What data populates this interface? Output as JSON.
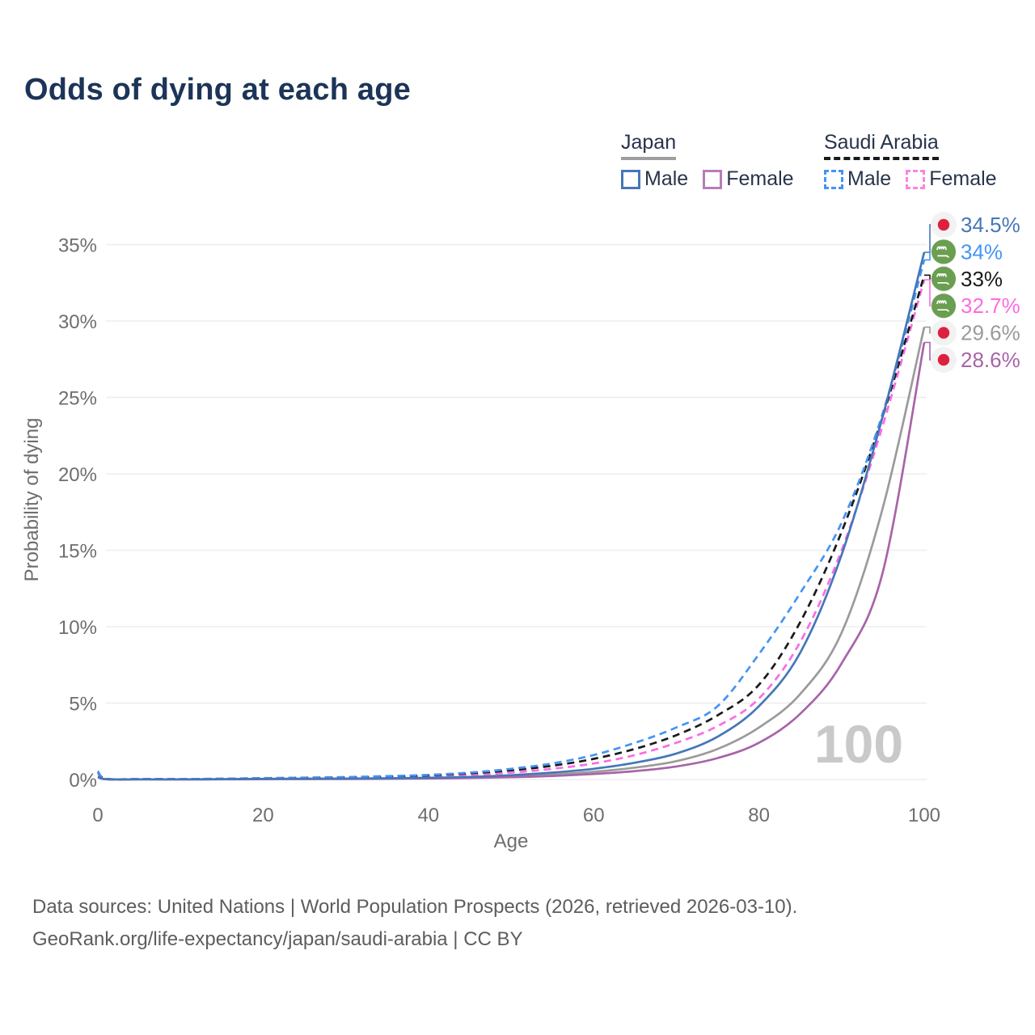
{
  "title": "Odds of dying at each age",
  "legend": {
    "japan": {
      "title": "Japan",
      "male_label": "Male",
      "female_label": "Female",
      "underline_color": "#9e9e9e",
      "underline_style": "solid",
      "male_color": "#4577b8",
      "female_color": "#b87cb8"
    },
    "saudi": {
      "title": "Saudi Arabia",
      "male_label": "Male",
      "female_label": "Female",
      "underline_color": "#1a1a1a",
      "underline_style": "dashed",
      "male_color": "#4494f6",
      "female_color": "#fb84e1"
    }
  },
  "chart_data": {
    "type": "line",
    "title": "Odds of dying at each age",
    "xlabel": "Age",
    "ylabel": "Probability of dying",
    "xlim": [
      0,
      100
    ],
    "ylim": [
      0,
      36.5
    ],
    "grid": "horizontal",
    "grid_color": "#ededed",
    "axis_text_color": "#6e6e6e",
    "xticks": [
      {
        "v": 0,
        "label": "0"
      },
      {
        "v": 20,
        "label": "20"
      },
      {
        "v": 40,
        "label": "40"
      },
      {
        "v": 60,
        "label": "60"
      },
      {
        "v": 80,
        "label": "80"
      },
      {
        "v": 100,
        "label": "100"
      }
    ],
    "yticks": [
      {
        "v": 0,
        "label": "0%"
      },
      {
        "v": 5,
        "label": "5%"
      },
      {
        "v": 10,
        "label": "10%"
      },
      {
        "v": 15,
        "label": "15%"
      },
      {
        "v": 20,
        "label": "20%"
      },
      {
        "v": 25,
        "label": "25%"
      },
      {
        "v": 30,
        "label": "30%"
      },
      {
        "v": 35,
        "label": "35%"
      }
    ],
    "hover_age_watermark": "100",
    "watermark_color": "#c9c9c9",
    "series": [
      {
        "name": "japan-total",
        "country": "Japan",
        "sex": "Total",
        "color": "#9b9b9b",
        "dash": false,
        "flag": "japan",
        "end_label": "29.6%",
        "end_value": 29.6,
        "label_row": 4,
        "points": [
          [
            0,
            0.16
          ],
          [
            1,
            0.018
          ],
          [
            5,
            0.009
          ],
          [
            10,
            0.008
          ],
          [
            15,
            0.015
          ],
          [
            20,
            0.03
          ],
          [
            25,
            0.04
          ],
          [
            30,
            0.05
          ],
          [
            35,
            0.06
          ],
          [
            40,
            0.085
          ],
          [
            45,
            0.13
          ],
          [
            50,
            0.2
          ],
          [
            55,
            0.32
          ],
          [
            60,
            0.5
          ],
          [
            65,
            0.78
          ],
          [
            70,
            1.2
          ],
          [
            75,
            2.0
          ],
          [
            80,
            3.4
          ],
          [
            85,
            5.6
          ],
          [
            90,
            9.6
          ],
          [
            95,
            17.8
          ],
          [
            100,
            29.6
          ]
        ]
      },
      {
        "name": "japan-female",
        "country": "Japan",
        "sex": "Female",
        "color": "#a864a8",
        "dash": false,
        "flag": "japan",
        "end_label": "28.6%",
        "end_value": 28.6,
        "label_row": 5,
        "points": [
          [
            0,
            0.15
          ],
          [
            1,
            0.016
          ],
          [
            5,
            0.008
          ],
          [
            10,
            0.007
          ],
          [
            15,
            0.01
          ],
          [
            20,
            0.02
          ],
          [
            25,
            0.027
          ],
          [
            30,
            0.033
          ],
          [
            35,
            0.045
          ],
          [
            40,
            0.065
          ],
          [
            45,
            0.1
          ],
          [
            50,
            0.15
          ],
          [
            55,
            0.23
          ],
          [
            60,
            0.36
          ],
          [
            65,
            0.55
          ],
          [
            70,
            0.85
          ],
          [
            75,
            1.4
          ],
          [
            80,
            2.4
          ],
          [
            85,
            4.3
          ],
          [
            90,
            7.6
          ],
          [
            95,
            13.6
          ],
          [
            100,
            28.6
          ]
        ]
      },
      {
        "name": "saudi-female",
        "country": "Saudi Arabia",
        "sex": "Female",
        "color": "#fb6ce2",
        "dash": true,
        "flag": "saudi",
        "end_label": "32.7%",
        "end_value": 32.7,
        "label_row": 3,
        "points": [
          [
            0,
            0.45
          ],
          [
            1,
            0.04
          ],
          [
            5,
            0.022
          ],
          [
            10,
            0.022
          ],
          [
            15,
            0.035
          ],
          [
            20,
            0.06
          ],
          [
            25,
            0.085
          ],
          [
            30,
            0.11
          ],
          [
            35,
            0.15
          ],
          [
            40,
            0.21
          ],
          [
            45,
            0.3
          ],
          [
            50,
            0.45
          ],
          [
            55,
            0.7
          ],
          [
            60,
            1.05
          ],
          [
            65,
            1.6
          ],
          [
            70,
            2.4
          ],
          [
            75,
            3.5
          ],
          [
            80,
            5.3
          ],
          [
            85,
            9.0
          ],
          [
            90,
            15.0
          ],
          [
            95,
            23.2
          ],
          [
            100,
            32.7
          ]
        ]
      },
      {
        "name": "saudi-total",
        "country": "Saudi Arabia",
        "sex": "Total",
        "color": "#1a1a1a",
        "dash": true,
        "flag": "saudi",
        "end_label": "33%",
        "end_value": 33,
        "label_row": 2,
        "points": [
          [
            0,
            0.5
          ],
          [
            1,
            0.045
          ],
          [
            5,
            0.027
          ],
          [
            10,
            0.027
          ],
          [
            15,
            0.045
          ],
          [
            20,
            0.08
          ],
          [
            25,
            0.11
          ],
          [
            30,
            0.14
          ],
          [
            35,
            0.19
          ],
          [
            40,
            0.27
          ],
          [
            45,
            0.4
          ],
          [
            50,
            0.6
          ],
          [
            55,
            0.9
          ],
          [
            60,
            1.35
          ],
          [
            65,
            2.0
          ],
          [
            70,
            2.9
          ],
          [
            75,
            4.2
          ],
          [
            80,
            6.2
          ],
          [
            85,
            10.3
          ],
          [
            90,
            16.2
          ],
          [
            95,
            23.8
          ],
          [
            100,
            33
          ]
        ]
      },
      {
        "name": "saudi-male",
        "country": "Saudi Arabia",
        "sex": "Male",
        "color": "#4494f6",
        "dash": true,
        "flag": "saudi",
        "end_label": "34%",
        "end_value": 34,
        "label_row": 1,
        "points": [
          [
            0,
            0.55
          ],
          [
            1,
            0.05
          ],
          [
            5,
            0.03
          ],
          [
            10,
            0.03
          ],
          [
            15,
            0.05
          ],
          [
            20,
            0.09
          ],
          [
            25,
            0.12
          ],
          [
            30,
            0.16
          ],
          [
            35,
            0.22
          ],
          [
            40,
            0.3
          ],
          [
            45,
            0.45
          ],
          [
            50,
            0.7
          ],
          [
            55,
            1.05
          ],
          [
            60,
            1.6
          ],
          [
            65,
            2.4
          ],
          [
            70,
            3.4
          ],
          [
            75,
            4.8
          ],
          [
            80,
            8.2
          ],
          [
            85,
            12.2
          ],
          [
            90,
            16.8
          ],
          [
            95,
            24.0
          ],
          [
            100,
            34
          ]
        ]
      },
      {
        "name": "japan-male",
        "country": "Japan",
        "sex": "Male",
        "color": "#4577b8",
        "dash": false,
        "flag": "japan",
        "end_label": "34.5%",
        "end_value": 34.5,
        "label_row": 0,
        "points": [
          [
            0,
            0.18
          ],
          [
            1,
            0.02
          ],
          [
            5,
            0.01
          ],
          [
            10,
            0.01
          ],
          [
            15,
            0.02
          ],
          [
            20,
            0.04
          ],
          [
            25,
            0.05
          ],
          [
            30,
            0.06
          ],
          [
            35,
            0.08
          ],
          [
            40,
            0.11
          ],
          [
            45,
            0.17
          ],
          [
            50,
            0.28
          ],
          [
            55,
            0.45
          ],
          [
            60,
            0.7
          ],
          [
            65,
            1.1
          ],
          [
            70,
            1.7
          ],
          [
            75,
            2.8
          ],
          [
            80,
            4.8
          ],
          [
            85,
            8.3
          ],
          [
            90,
            14.7
          ],
          [
            95,
            23.8
          ],
          [
            100,
            34.5
          ]
        ]
      }
    ],
    "flag_colors": {
      "japan_red": "#de2040",
      "saudi_green": "#6a9e50",
      "icon_bg": "#f2f2f2"
    }
  },
  "footer": {
    "line1": "Data sources: United Nations | World Population Prospects (2026, retrieved 2026-03-10).",
    "line2": "GeoRank.org/life-expectancy/japan/saudi-arabia | CC BY"
  }
}
